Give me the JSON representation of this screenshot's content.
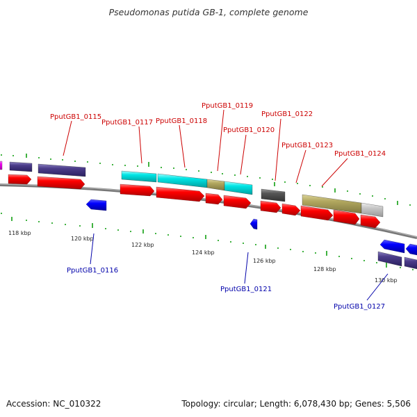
{
  "title": "Pseudomonas putida GB-1, complete genome",
  "accession_text": "Accession: NC_010322",
  "topology_text": "Topology: circular; Length: 6,078,430 bp; Genes: 5,506",
  "colors": {
    "backbone": "#888888",
    "cds": "#ff0000",
    "antisense_cds": "#0000ff",
    "cog_purple": "#4b3c8a",
    "cog_cyan": "#00e5e5",
    "cog_khaki": "#b2a860",
    "cog_darkgray": "#555555",
    "cog_lightgray": "#c8c8c8",
    "cog_magenta": "#ff00ff",
    "tick": "#009900",
    "label_forward": "#cc0000",
    "label_reverse": "#0000aa"
  },
  "ticks": [
    "118 kbp",
    "120 kbp",
    "122 kbp",
    "124 kbp",
    "126 kbp",
    "128 kbp",
    "130 kbp"
  ],
  "gene_labels": {
    "forward": [
      "PputGB1_0115",
      "PputGB1_0117",
      "PputGB1_0118",
      "PputGB1_0119",
      "PputGB1_0120",
      "PputGB1_0122",
      "PputGB1_0123",
      "PputGB1_0124"
    ],
    "reverse": [
      "PputGB1_0116",
      "PputGB1_0121",
      "PputGB1_0127"
    ]
  }
}
